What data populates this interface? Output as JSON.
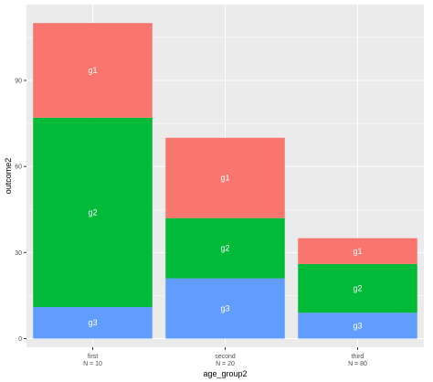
{
  "chart_data": {
    "type": "bar",
    "stacked": true,
    "categories": [
      "first\nN =  10",
      "second\nN =  20",
      "third\nN =  80"
    ],
    "stack_order_top_to_bottom": [
      "g1",
      "g2",
      "g3"
    ],
    "series": [
      {
        "name": "g1",
        "values": [
          33,
          28,
          9
        ],
        "color": "#F8766D"
      },
      {
        "name": "g2",
        "values": [
          66,
          21,
          17
        ],
        "color": "#00BA38"
      },
      {
        "name": "g3",
        "values": [
          11,
          21,
          9
        ],
        "color": "#619CFF"
      }
    ],
    "totals": [
      110,
      70,
      35
    ],
    "xlabel": "age_group2",
    "ylabel": "outcome2",
    "ylim": [
      0,
      115
    ],
    "yticks": [
      0,
      30,
      60,
      90
    ],
    "grid": true,
    "legend": "none",
    "panel_background": "#EBEBEB",
    "gridline_color": "#FFFFFF"
  }
}
